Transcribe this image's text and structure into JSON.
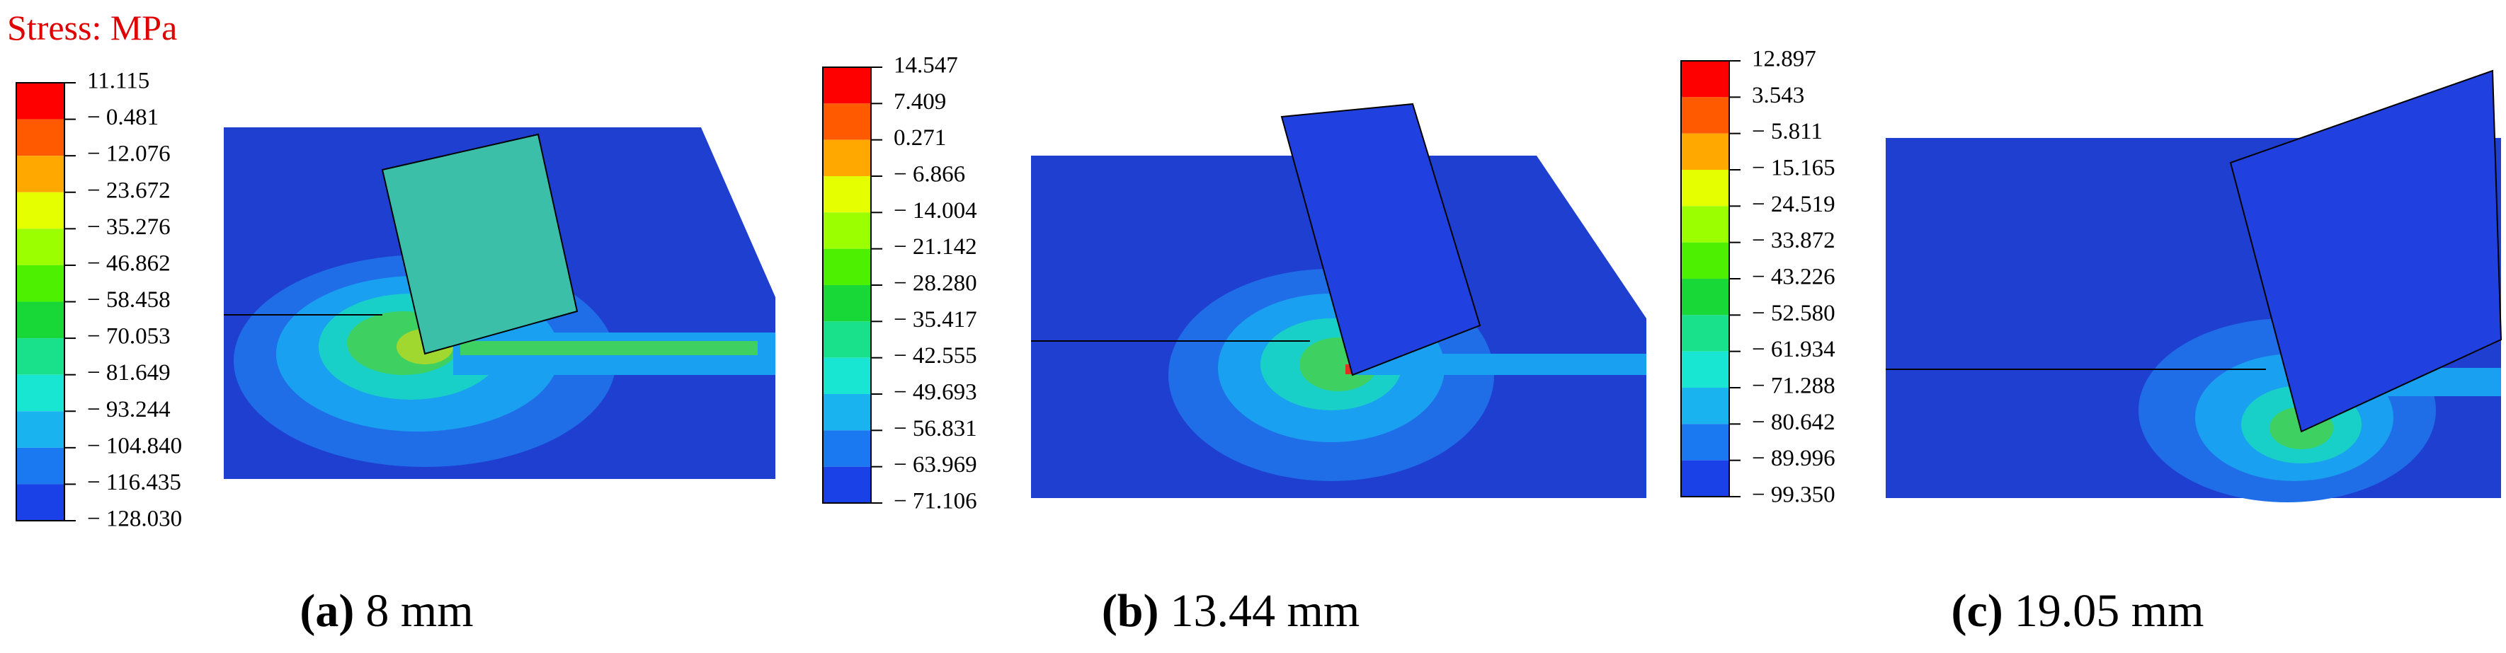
{
  "title": "Stress: MPa",
  "panels": [
    {
      "caption_label": "(a)",
      "caption_text": "8 mm",
      "legend": [
        "11.115",
        "− 0.481",
        "− 12.076",
        "− 23.672",
        "− 35.276",
        "− 46.862",
        "− 58.458",
        "− 70.053",
        "− 81.649",
        "− 93.244",
        "− 104.840",
        "− 116.435",
        "− 128.030"
      ]
    },
    {
      "caption_label": "(b)",
      "caption_text": "13.44 mm",
      "legend": [
        "14.547",
        "7.409",
        "0.271",
        "− 6.866",
        "− 14.004",
        "− 21.142",
        "− 28.280",
        "− 35.417",
        "− 42.555",
        "− 49.693",
        "− 56.831",
        "− 63.969",
        "− 71.106"
      ]
    },
    {
      "caption_label": "(c)",
      "caption_text": "19.05 mm",
      "legend": [
        "12.897",
        "3.543",
        "− 5.811",
        "− 15.165",
        "− 24.519",
        "− 33.872",
        "− 43.226",
        "− 52.580",
        "− 61.934",
        "− 71.288",
        "− 80.642",
        "− 89.996",
        "− 99.350"
      ]
    }
  ]
}
